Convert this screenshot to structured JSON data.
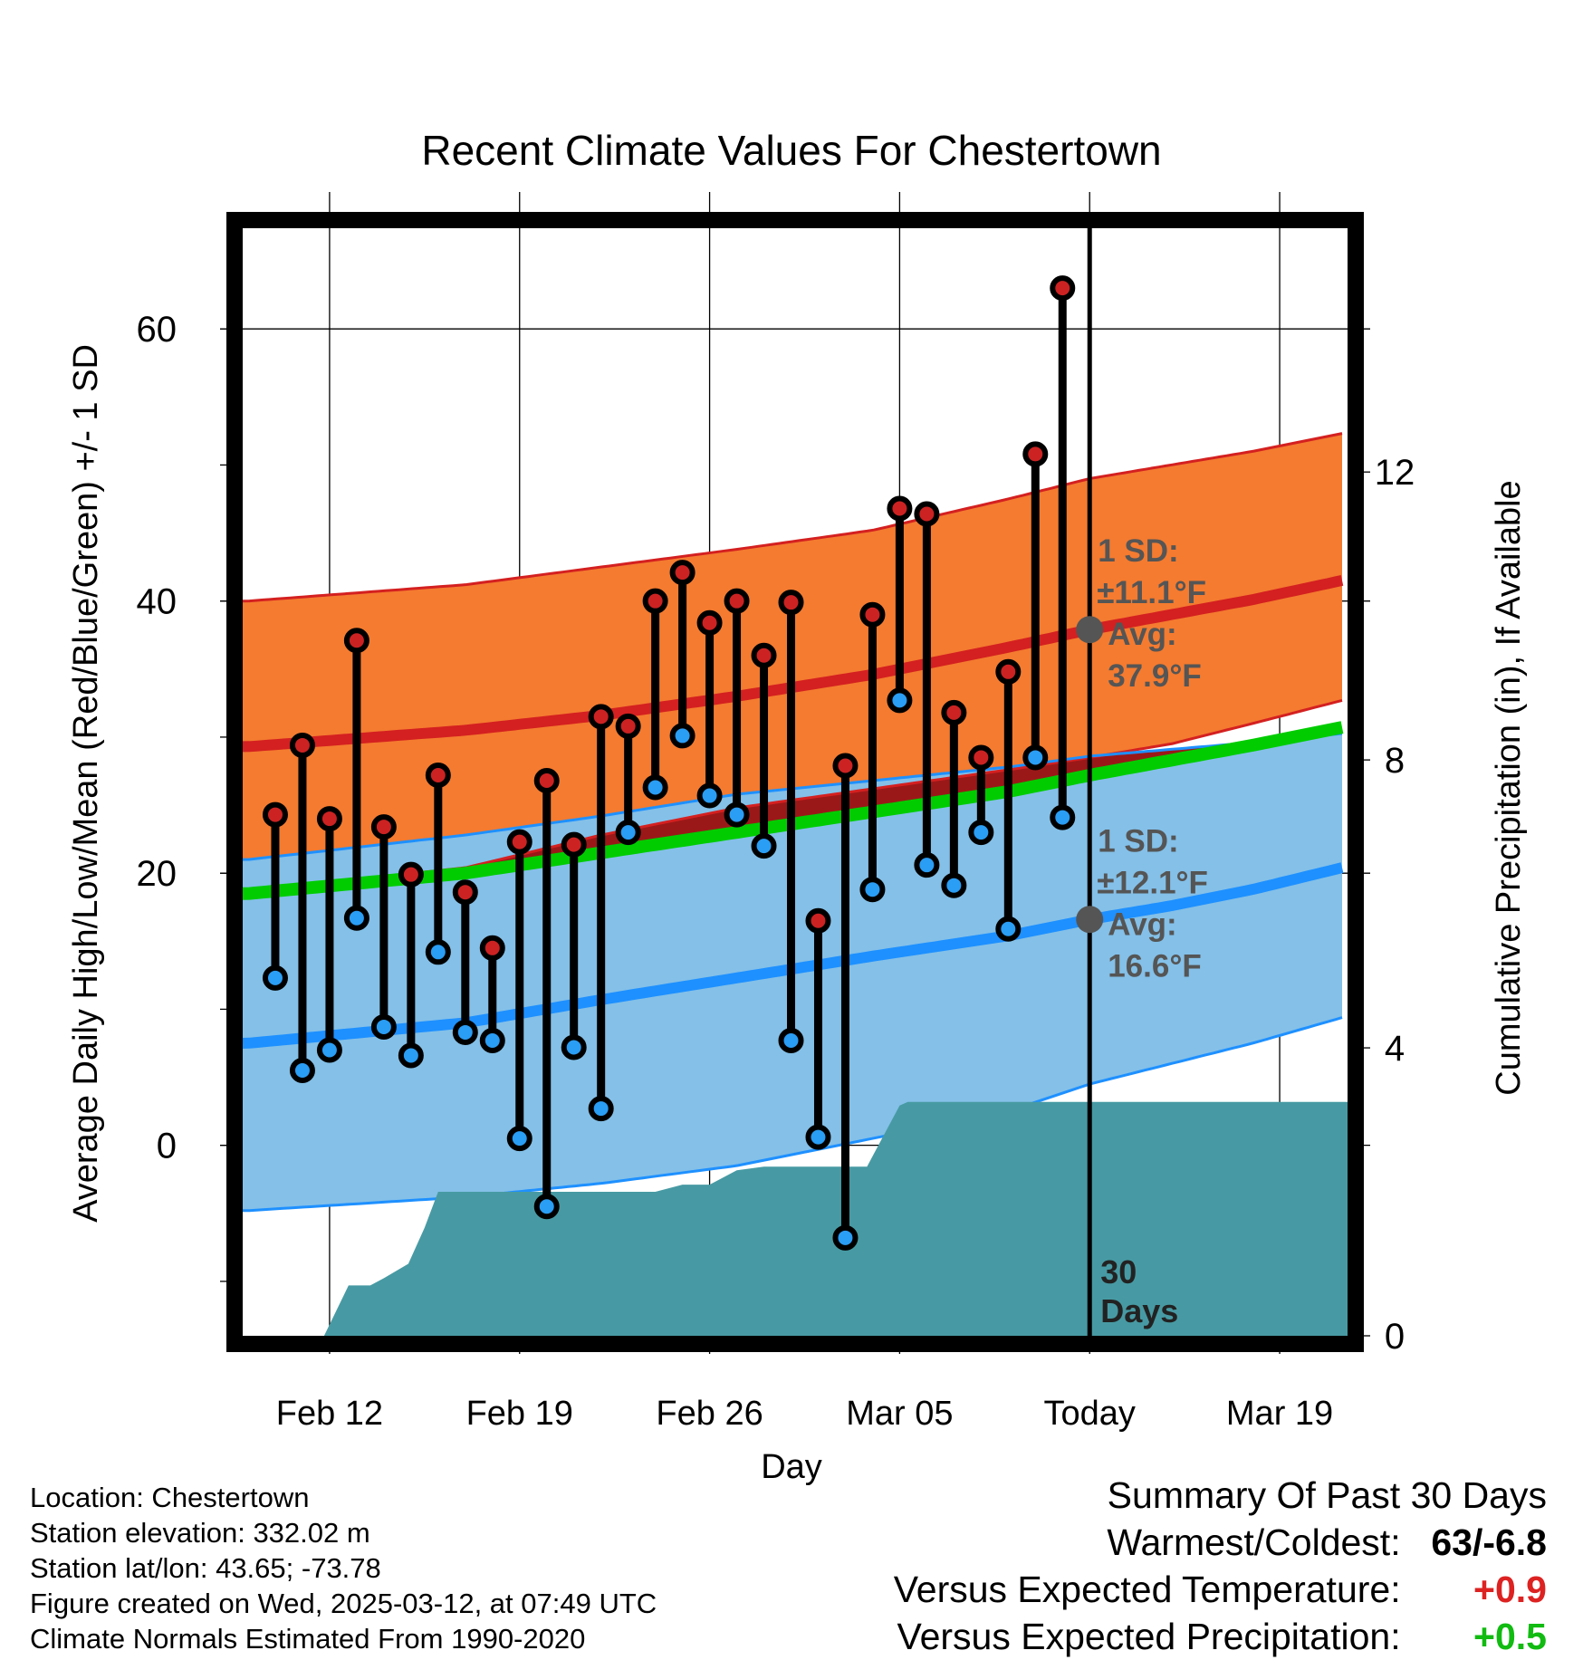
{
  "chart_data": {
    "type": "line",
    "title": "Recent Climate Values For Chestertown",
    "xlabel": "Day",
    "ylabel": "Average Daily High/Low/Mean (Red/Blue/Green) +/- 1 SD",
    "y2label": "Cumulative Precipitation (in), If Available",
    "xlim": [
      -3.2,
      37.5
    ],
    "ylim": [
      -14,
      68
    ],
    "y2lim": [
      0,
      15.5
    ],
    "x_ticks": [
      0,
      7,
      14,
      21,
      28,
      35
    ],
    "x_tick_labels": [
      "Feb 12",
      "Feb 19",
      "Feb 26",
      "Mar 05",
      "Today",
      "Mar 19"
    ],
    "y_ticks": [
      0,
      20,
      40,
      60
    ],
    "y2_ticks": [
      0,
      4,
      8,
      12
    ],
    "grid": true,
    "today_x": 28,
    "today_label": [
      "30",
      "Days"
    ],
    "normals": {
      "high_mean_x": [
        -3,
        5,
        10,
        15,
        20,
        25,
        28,
        31,
        34,
        37.5
      ],
      "high_mean": [
        29.3,
        30.5,
        31.6,
        33.0,
        34.6,
        36.6,
        37.9,
        39.0,
        40.1,
        41.6
      ],
      "high_plus_sd": [
        40.0,
        41.2,
        42.5,
        43.8,
        45.2,
        47.5,
        49.0,
        50.0,
        51.0,
        52.4
      ],
      "high_minus_sd": [
        18.7,
        20.4,
        22.8,
        24.8,
        26.2,
        27.6,
        28.5,
        29.5,
        31.0,
        32.8
      ],
      "low_mean": [
        7.5,
        9.0,
        10.7,
        12.3,
        13.9,
        15.4,
        16.6,
        17.6,
        18.8,
        20.5
      ],
      "low_plus_sd": [
        21.0,
        22.8,
        24.2,
        25.8,
        26.8,
        27.8,
        28.6,
        29.1,
        29.6,
        30.3
      ],
      "low_minus_sd": [
        -4.8,
        -3.8,
        -2.8,
        -1.5,
        0.5,
        2.5,
        4.5,
        6.0,
        7.5,
        9.5
      ],
      "mean": [
        18.5,
        20.0,
        21.5,
        23.0,
        24.5,
        26.0,
        27.2,
        28.3,
        29.4,
        30.8
      ]
    },
    "series": [
      {
        "name": "High",
        "x": [
          -2,
          -1,
          0,
          1,
          2,
          3,
          4,
          5,
          6,
          7,
          8,
          9,
          10,
          11,
          12,
          13,
          14,
          15,
          16,
          17,
          18,
          19,
          20,
          21,
          22,
          23,
          24,
          25,
          26,
          27
        ],
        "values": [
          24.3,
          29.4,
          24.0,
          37.1,
          23.4,
          19.9,
          27.2,
          18.6,
          14.5,
          22.3,
          26.8,
          22.1,
          31.5,
          30.8,
          40.0,
          42.1,
          38.4,
          40.0,
          36.0,
          39.9,
          16.5,
          27.9,
          39.0,
          46.8,
          46.4,
          31.8,
          28.5,
          34.8,
          50.8,
          63.0
        ]
      },
      {
        "name": "Low",
        "x": [
          -2,
          -1,
          0,
          1,
          2,
          3,
          4,
          5,
          6,
          7,
          8,
          9,
          10,
          11,
          12,
          13,
          14,
          15,
          16,
          17,
          18,
          19,
          20,
          21,
          22,
          23,
          24,
          25,
          26,
          27
        ],
        "values": [
          12.3,
          5.5,
          7.0,
          16.7,
          8.7,
          6.6,
          14.2,
          8.3,
          7.7,
          0.5,
          -4.5,
          7.2,
          2.7,
          23.0,
          26.3,
          30.1,
          25.7,
          24.3,
          22.0,
          7.7,
          0.6,
          -6.8,
          18.8,
          32.7,
          20.6,
          19.1,
          23.0,
          15.9,
          28.5,
          24.1
        ]
      }
    ],
    "precipitation": {
      "x": [
        -3.2,
        -0.2,
        0.7,
        1.5,
        2.0,
        2.9,
        3.5,
        4.0,
        7.0,
        10.0,
        12.0,
        13.0,
        14.0,
        15.0,
        16.0,
        17.0,
        19.0,
        19.8,
        21.0,
        21.3,
        22.0,
        27.0,
        28.0,
        37.5
      ],
      "values": [
        0,
        0,
        0.7,
        0.7,
        0.8,
        1.0,
        1.5,
        2.0,
        2.0,
        2.0,
        2.0,
        2.1,
        2.1,
        2.3,
        2.35,
        2.35,
        2.35,
        2.35,
        3.2,
        3.25,
        3.25,
        3.25,
        3.25,
        3.25
      ]
    },
    "annotations": {
      "high_sd": [
        "1 SD:",
        "±11.1°F",
        "Avg:",
        "37.9°F"
      ],
      "low_sd": [
        "1 SD:",
        "±12.1°F",
        "Avg:",
        "16.6°F"
      ]
    }
  },
  "info": {
    "location": "Location: Chestertown",
    "elevation": "Station elevation: 332.02 m",
    "latlon": "Station lat/lon: 43.65; -73.78",
    "created": "Figure created on Wed, 2025-03-12, at 07:49 UTC",
    "normals": "Climate Normals Estimated From 1990-2020"
  },
  "summary": {
    "heading": "Summary Of Past 30 Days",
    "warm_cold_label": "Warmest/Coldest:",
    "warm_cold_value": "63/-6.8",
    "temp_label": "Versus Expected Temperature:",
    "temp_value": "+0.9",
    "precip_label": "Versus Expected Precipitation:",
    "precip_value": "+0.5"
  },
  "colors": {
    "high_band": "#f47b30",
    "high_line": "#d42020",
    "low_band": "#84c0e8",
    "low_line": "#1e90ff",
    "mean_line": "#00cc00",
    "overlap": "#9b1818",
    "precip": "#479aa3",
    "annotation": "#555555",
    "high_dot": "#cc2222",
    "low_dot": "#2a9df4"
  }
}
